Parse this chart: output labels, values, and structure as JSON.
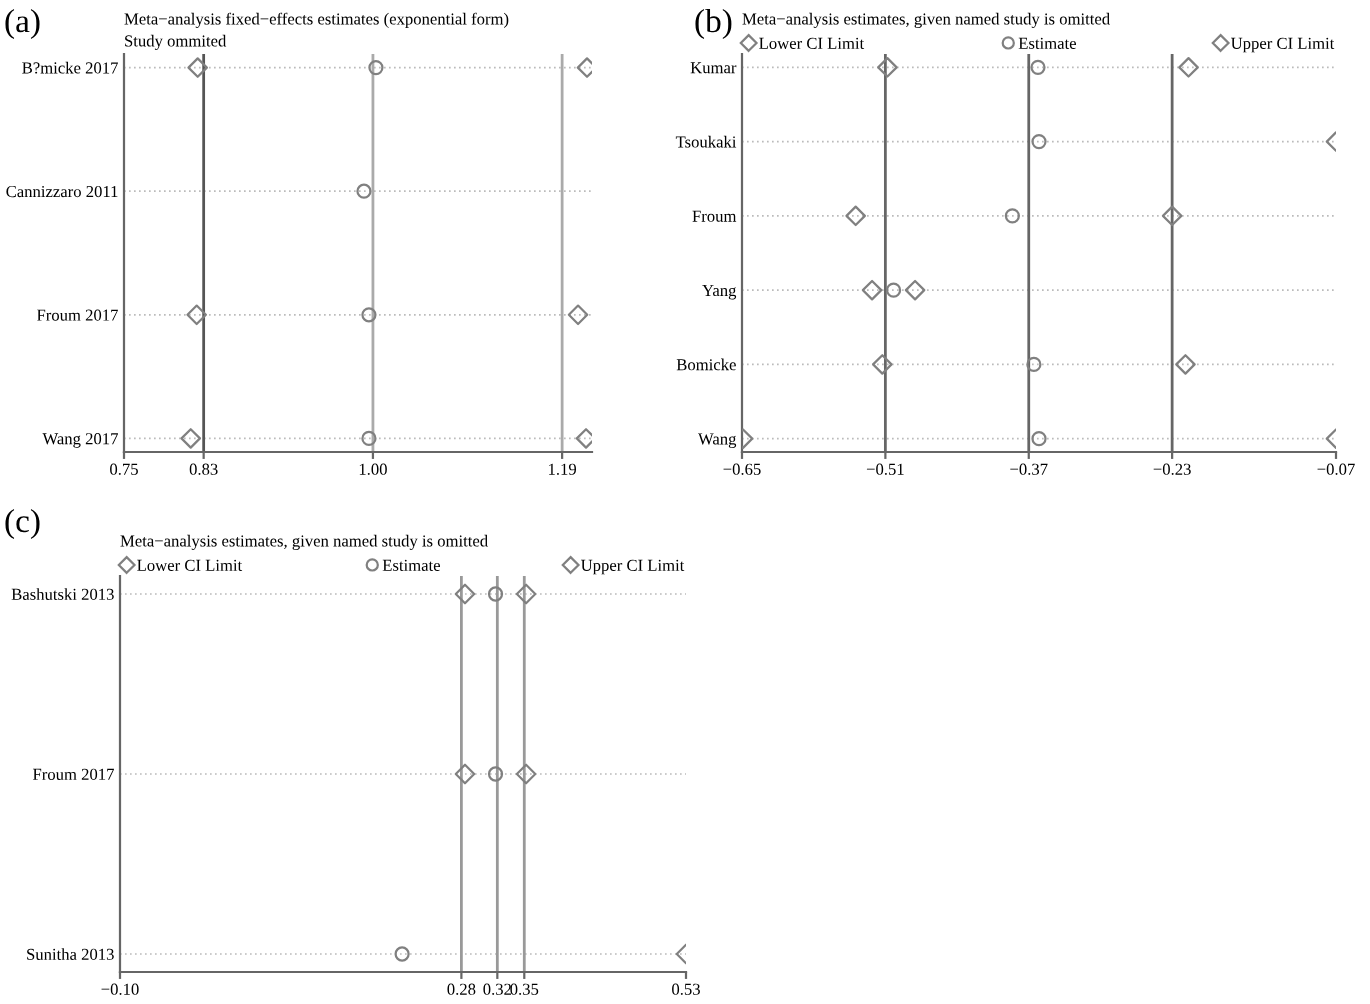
{
  "chart_data": [
    {
      "type": "scatter",
      "orientation": "horizontal",
      "title": "Meta−analysis fixed−effects estimates (exponential form)",
      "subtitle": "Study ommited",
      "annotations": [
        "(a)"
      ],
      "categories": [
        "B?micke 2017",
        "Cannizzaro 2011",
        "Froum 2017",
        "Wang 2017"
      ],
      "series": [
        {
          "color": "#808080",
          "marker": "diamond",
          "values": [
            0.824,
            null,
            0.823,
            0.817
          ]
        },
        {
          "color": "#808080",
          "marker": "circle",
          "values": [
            1.003,
            0.991,
            0.996,
            0.996
          ]
        },
        {
          "color": "#808080",
          "marker": "diamond",
          "values": [
            1.215,
            null,
            1.206,
            1.214
          ]
        }
      ],
      "xlim": [
        0.75,
        1.22
      ],
      "xticks": [
        0.75,
        0.83,
        {
          "value": 1.0,
          "label": "1.00"
        },
        1.19
      ],
      "ref_lines": [
        {
          "axis": "x",
          "value": 0.83,
          "color": "#555555"
        },
        {
          "axis": "x",
          "value": 1.0,
          "color": "#aaaaaa"
        },
        {
          "axis": "x",
          "value": 1.19,
          "color": "#aaaaaa"
        }
      ],
      "grid": "y"
    },
    {
      "type": "scatter",
      "orientation": "horizontal",
      "title": "Meta−analysis estimates, given named study is omitted",
      "annotations": [
        "(b)"
      ],
      "categories": [
        "Kumar",
        "Tsoukaki",
        "Froum",
        "Yang",
        "Bomicke",
        "Wang"
      ],
      "series": [
        {
          "name": "Lower CI Limit",
          "color": "#808080",
          "marker": "diamond",
          "values": [
            -0.508,
            null,
            -0.539,
            -0.523,
            -0.513,
            -0.649
          ]
        },
        {
          "name": "Estimate",
          "color": "#808080",
          "marker": "circle",
          "values": [
            -0.361,
            -0.36,
            -0.386,
            -0.502,
            -0.365,
            -0.36
          ]
        },
        {
          "name": "Upper CI Limit",
          "color": "#808080",
          "marker": "diamond",
          "values": [
            -0.214,
            -0.07,
            -0.23,
            -0.481,
            -0.217,
            -0.07
          ]
        }
      ],
      "xlim": [
        -0.65,
        -0.07
      ],
      "xticks": [
        {
          "value": -0.65,
          "label": "−0.65"
        },
        {
          "value": -0.51,
          "label": "−0.51"
        },
        {
          "value": -0.37,
          "label": "−0.37"
        },
        {
          "value": -0.23,
          "label": "−0.23"
        },
        {
          "value": -0.07,
          "label": "−0.07"
        }
      ],
      "ref_lines": [
        {
          "axis": "x",
          "value": -0.51,
          "color": "#666666"
        },
        {
          "axis": "x",
          "value": -0.37,
          "color": "#666666"
        },
        {
          "axis": "x",
          "value": -0.23,
          "color": "#666666"
        }
      ],
      "grid": "y",
      "legend": "top"
    },
    {
      "type": "scatter",
      "orientation": "horizontal",
      "title": "Meta−analysis estimates, given named study is omitted",
      "annotations": [
        "(c)"
      ],
      "categories": [
        "Bashutski 2013",
        "Froum 2017",
        "Sunitha 2013"
      ],
      "series": [
        {
          "name": "Lower CI Limit",
          "color": "#808080",
          "marker": "diamond",
          "values": [
            0.284,
            0.284,
            null
          ]
        },
        {
          "name": "Estimate",
          "color": "#808080",
          "marker": "circle",
          "values": [
            0.318,
            0.318,
            0.214
          ]
        },
        {
          "name": "Upper CI Limit",
          "color": "#808080",
          "marker": "diamond",
          "values": [
            0.352,
            0.352,
            0.53
          ]
        }
      ],
      "xlim": [
        -0.1,
        0.53
      ],
      "xticks": [
        {
          "value": -0.1,
          "label": "−0.10"
        },
        0.28,
        0.32,
        0.35,
        0.53
      ],
      "ref_lines": [
        {
          "axis": "x",
          "value": 0.28,
          "color": "#999999"
        },
        {
          "axis": "x",
          "value": 0.32,
          "color": "#999999"
        },
        {
          "axis": "x",
          "value": 0.35,
          "color": "#999999"
        }
      ],
      "grid": "y",
      "legend": "top"
    }
  ]
}
